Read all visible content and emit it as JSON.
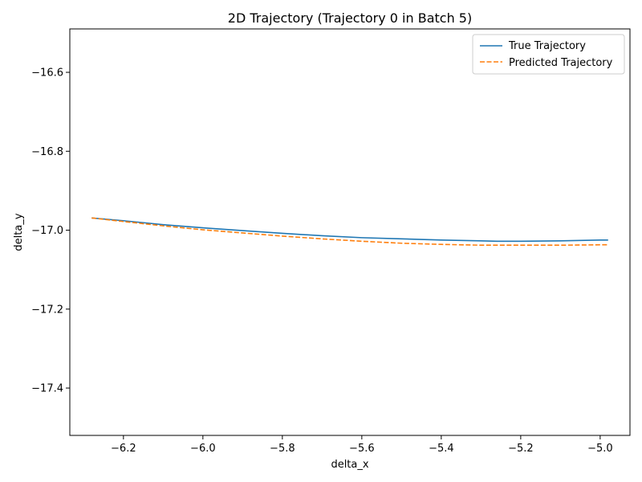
{
  "chart_data": {
    "type": "line",
    "title": "2D Trajectory (Trajectory 0 in Batch 5)",
    "xlabel": "delta_x",
    "ylabel": "delta_y",
    "xlim": [
      -6.335,
      -4.925
    ],
    "ylim": [
      -17.52,
      -16.49
    ],
    "xticks": [
      -6.2,
      -6.0,
      -5.8,
      -5.6,
      -5.4,
      -5.2,
      -5.0
    ],
    "yticks": [
      -16.6,
      -16.8,
      -17.0,
      -17.2,
      -17.4
    ],
    "xtick_labels": [
      "−6.2",
      "−6.0",
      "−5.8",
      "−5.6",
      "−5.4",
      "−5.2",
      "−5.0"
    ],
    "ytick_labels": [
      "−16.6",
      "−16.8",
      "−17.0",
      "−17.2",
      "−17.4"
    ],
    "grid": false,
    "legend_position": "top-right",
    "series": [
      {
        "name": "True Trajectory",
        "color": "#1f77b4",
        "dash": "solid",
        "x": [
          -6.28,
          -6.2,
          -6.1,
          -6.0,
          -5.9,
          -5.8,
          -5.7,
          -5.6,
          -5.5,
          -5.4,
          -5.3,
          -5.26,
          -5.2,
          -5.1,
          -5.0,
          -4.98
        ],
        "y": [
          -16.969,
          -16.976,
          -16.986,
          -16.994,
          -17.001,
          -17.008,
          -17.014,
          -17.019,
          -17.022,
          -17.025,
          -17.027,
          -17.028,
          -17.028,
          -17.027,
          -17.025,
          -17.025
        ]
      },
      {
        "name": "Predicted Trajectory",
        "color": "#ff7f0e",
        "dash": "dashed",
        "x": [
          -6.28,
          -6.2,
          -6.1,
          -6.0,
          -5.9,
          -5.8,
          -5.7,
          -5.6,
          -5.5,
          -5.4,
          -5.3,
          -5.26,
          -5.2,
          -5.1,
          -5.0,
          -4.98
        ],
        "y": [
          -16.969,
          -16.978,
          -16.989,
          -16.999,
          -17.007,
          -17.015,
          -17.022,
          -17.028,
          -17.033,
          -17.036,
          -17.038,
          -17.038,
          -17.038,
          -17.038,
          -17.037,
          -17.037
        ]
      }
    ]
  }
}
